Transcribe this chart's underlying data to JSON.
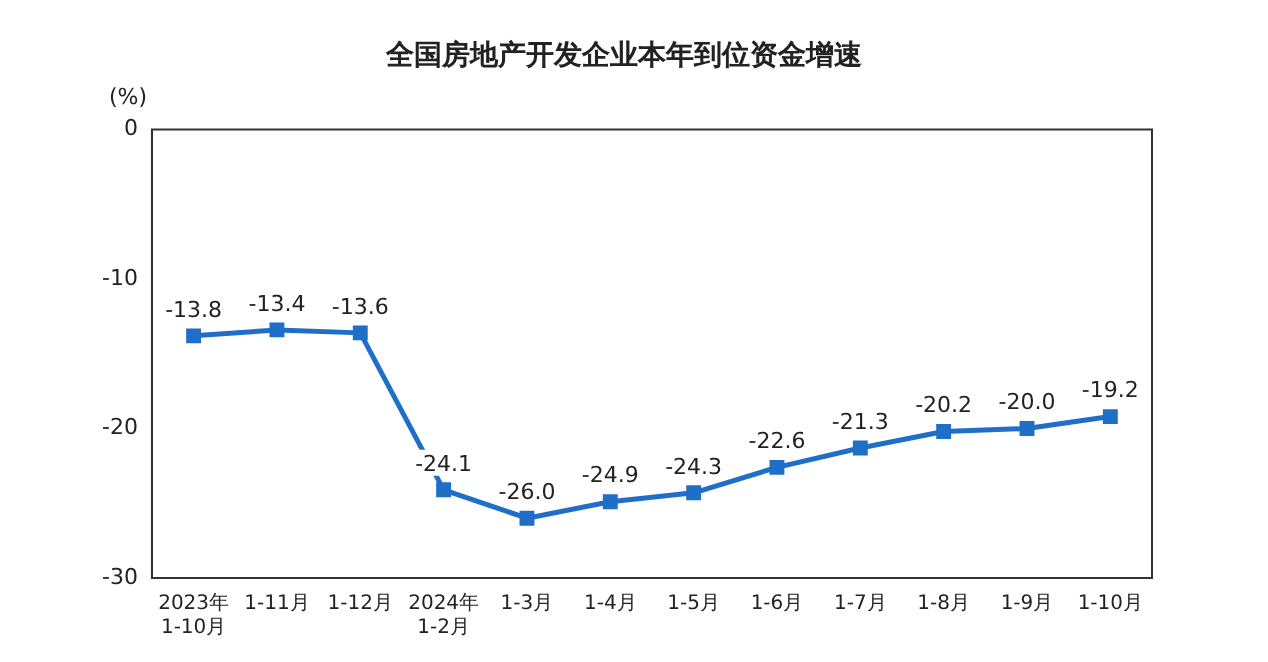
{
  "chart_data": {
    "type": "line",
    "title": "全国房地产开发企业本年到位资金增速",
    "ylabel": "(%)",
    "categories": [
      "2023年\n1-10月",
      "1-11月",
      "1-12月",
      "2024年\n1-2月",
      "1-3月",
      "1-4月",
      "1-5月",
      "1-6月",
      "1-7月",
      "1-8月",
      "1-9月",
      "1-10月"
    ],
    "series": [
      {
        "color": "#1f6fc8",
        "values": [
          -13.8,
          -13.4,
          -13.6,
          -24.1,
          -26.0,
          -24.9,
          -24.3,
          -22.6,
          -21.3,
          -20.2,
          -20.0,
          -19.2
        ],
        "value_labels": [
          "-13.8",
          "-13.4",
          "-13.6",
          "-24.1",
          "-26.0",
          "-24.9",
          "-24.3",
          "-22.6",
          "-21.3",
          "-20.2",
          "-20.0",
          "-19.2"
        ]
      }
    ],
    "ylim": [
      -30,
      0
    ],
    "yticks": [
      0,
      -10,
      -20,
      -30
    ],
    "grid": false,
    "legend": false,
    "marker": "square",
    "line_style": "solid"
  }
}
